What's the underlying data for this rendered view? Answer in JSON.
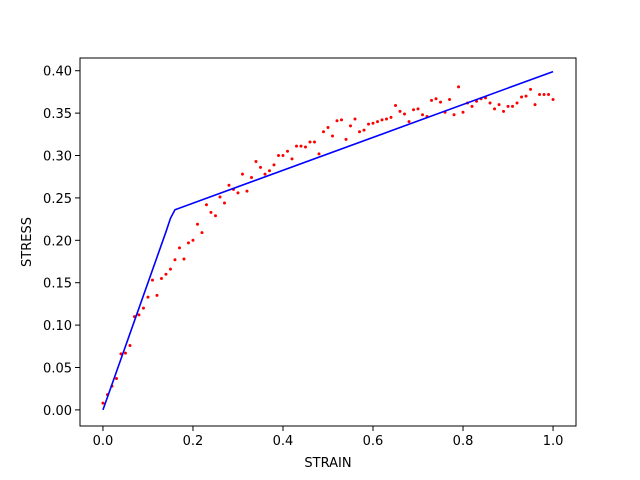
{
  "chart_data": {
    "type": "scatter",
    "xlabel": "STRAIN",
    "ylabel": "STRESS",
    "xlim": [
      -0.051,
      1.051
    ],
    "ylim": [
      -0.019,
      0.415
    ],
    "xticks": [
      {
        "value": 0,
        "label": "0.0"
      },
      {
        "value": 0.2,
        "label": "0.2"
      },
      {
        "value": 0.4,
        "label": "0.4"
      },
      {
        "value": 0.6,
        "label": "0.6"
      },
      {
        "value": 0.8,
        "label": "0.8"
      },
      {
        "value": 1,
        "label": "1.0"
      }
    ],
    "yticks": [
      {
        "value": 0,
        "label": "0.00"
      },
      {
        "value": 0.05,
        "label": "0.05"
      },
      {
        "value": 0.1,
        "label": "0.10"
      },
      {
        "value": 0.15,
        "label": "0.15"
      },
      {
        "value": 0.2,
        "label": "0.20"
      },
      {
        "value": 0.25,
        "label": "0.25"
      },
      {
        "value": 0.3,
        "label": "0.30"
      },
      {
        "value": 0.35,
        "label": "0.35"
      },
      {
        "value": 0.4,
        "label": "0.40"
      }
    ],
    "grid": false,
    "series": [
      {
        "type": "scatter",
        "color": "#ff0000",
        "x": [
          0,
          0.01,
          0.02,
          0.03,
          0.04,
          0.05,
          0.06,
          0.07,
          0.08,
          0.09,
          0.1,
          0.11,
          0.12,
          0.13,
          0.14,
          0.15,
          0.16,
          0.17,
          0.18,
          0.19,
          0.2,
          0.21,
          0.22,
          0.23,
          0.24,
          0.25,
          0.26,
          0.27,
          0.28,
          0.29,
          0.3,
          0.31,
          0.32,
          0.33,
          0.34,
          0.35,
          0.36,
          0.37,
          0.38,
          0.39,
          0.4,
          0.41,
          0.42,
          0.43,
          0.44,
          0.45,
          0.46,
          0.47,
          0.48,
          0.49,
          0.5,
          0.51,
          0.52,
          0.53,
          0.54,
          0.55,
          0.56,
          0.57,
          0.58,
          0.59,
          0.6,
          0.61,
          0.62,
          0.63,
          0.64,
          0.65,
          0.66,
          0.67,
          0.68,
          0.69,
          0.7,
          0.71,
          0.72,
          0.73,
          0.74,
          0.75,
          0.76,
          0.77,
          0.78,
          0.79,
          0.8,
          0.81,
          0.82,
          0.83,
          0.84,
          0.85,
          0.86,
          0.87,
          0.88,
          0.89,
          0.9,
          0.91,
          0.92,
          0.93,
          0.94,
          0.95,
          0.96,
          0.97,
          0.98,
          0.99,
          1
        ],
        "y": [
          0.008,
          0.018,
          0.028,
          0.037,
          0.066,
          0.067,
          0.076,
          0.11,
          0.112,
          0.12,
          0.133,
          0.153,
          0.135,
          0.155,
          0.16,
          0.166,
          0.177,
          0.191,
          0.178,
          0.197,
          0.2,
          0.219,
          0.209,
          0.242,
          0.233,
          0.229,
          0.251,
          0.244,
          0.265,
          0.26,
          0.256,
          0.278,
          0.258,
          0.274,
          0.293,
          0.286,
          0.278,
          0.282,
          0.289,
          0.3,
          0.3,
          0.305,
          0.296,
          0.311,
          0.311,
          0.31,
          0.316,
          0.316,
          0.302,
          0.328,
          0.333,
          0.323,
          0.341,
          0.342,
          0.319,
          0.335,
          0.343,
          0.328,
          0.33,
          0.337,
          0.338,
          0.34,
          0.342,
          0.343,
          0.345,
          0.359,
          0.352,
          0.349,
          0.34,
          0.354,
          0.355,
          0.348,
          0.346,
          0.365,
          0.367,
          0.363,
          0.351,
          0.366,
          0.348,
          0.381,
          0.351,
          0.362,
          0.358,
          0.364,
          0.367,
          0.368,
          0.362,
          0.355,
          0.36,
          0.352,
          0.358,
          0.358,
          0.362,
          0.369,
          0.37,
          0.378,
          0.36,
          0.372,
          0.372,
          0.372,
          0.366
        ]
      },
      {
        "type": "line",
        "color": "#0000ff",
        "x": [
          0,
          0.14,
          0.15,
          0.16,
          1
        ],
        "y": [
          0,
          0.21,
          0.226,
          0.236,
          0.399
        ]
      }
    ]
  }
}
